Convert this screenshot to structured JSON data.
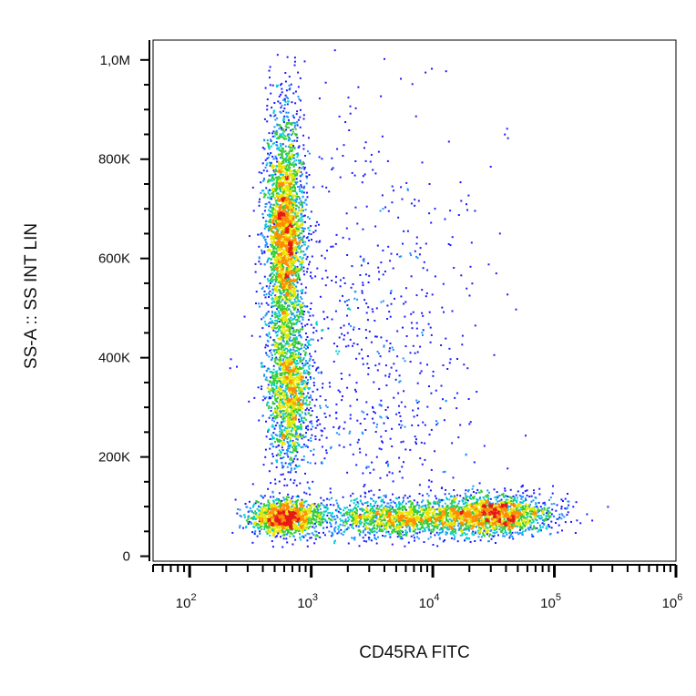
{
  "chart_data": {
    "type": "scatter",
    "subtype": "density-dot-plot",
    "xlabel": "CD45RA FITC",
    "ylabel": "SS-A :: SS INT LIN",
    "x_scale": "log",
    "xlim": [
      50,
      1000000
    ],
    "ylim": [
      -10000,
      1040000
    ],
    "x_ticks": [
      {
        "value": 100,
        "base": "10",
        "exp": "2"
      },
      {
        "value": 1000,
        "base": "10",
        "exp": "3"
      },
      {
        "value": 10000,
        "base": "10",
        "exp": "4"
      },
      {
        "value": 100000,
        "base": "10",
        "exp": "5"
      },
      {
        "value": 1000000,
        "base": "10",
        "exp": "6"
      }
    ],
    "y_ticks": [
      {
        "value": 0,
        "label": "0"
      },
      {
        "value": 200000,
        "label": "200K"
      },
      {
        "value": 400000,
        "label": "400K"
      },
      {
        "value": 600000,
        "label": "600K"
      },
      {
        "value": 800000,
        "label": "800K"
      },
      {
        "value": 1000000,
        "label": "1,0M"
      }
    ],
    "grid": false,
    "legend": "none",
    "colormap": [
      "#1a1aff",
      "#1e90ff",
      "#00d0d0",
      "#33cc33",
      "#e6e600",
      "#ff8c00",
      "#e61919"
    ],
    "populations": [
      {
        "center_x": 600,
        "center_y": 650000,
        "spread_log10_x": 0.08,
        "spread_y": 120000,
        "count": 3000
      },
      {
        "center_x": 650,
        "center_y": 330000,
        "spread_log10_x": 0.09,
        "spread_y": 70000,
        "count": 1400
      },
      {
        "center_x": 600,
        "center_y": 80000,
        "spread_log10_x": 0.14,
        "spread_y": 18000,
        "count": 1300
      },
      {
        "center_x": 30000,
        "center_y": 85000,
        "spread_log10_x": 0.25,
        "spread_y": 20000,
        "count": 1800
      },
      {
        "center_x": 5000,
        "center_y": 78000,
        "spread_log10_x": 0.3,
        "spread_y": 18000,
        "count": 1200
      },
      {
        "center_x": 3000,
        "center_y": 350000,
        "spread_log10_x": 0.45,
        "spread_y": 250000,
        "count": 900
      }
    ]
  }
}
